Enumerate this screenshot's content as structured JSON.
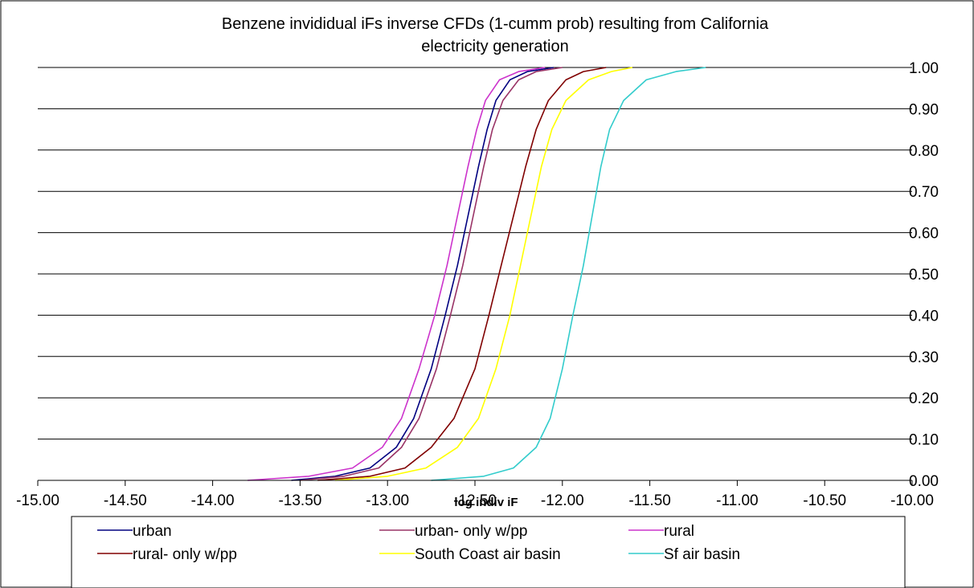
{
  "chart_data": {
    "type": "line",
    "title": "Benzene invididual iFs inverse CFDs (1-cumm prob) resulting from California electricity generation",
    "title_lines": [
      "Benzene invididual iFs inverse CFDs (1-cumm prob) resulting from California",
      "electricity generation"
    ],
    "xlabel": "log indiv iF",
    "ylabel": "",
    "xlim": [
      -15.0,
      -10.0
    ],
    "ylim": [
      0.0,
      1.0
    ],
    "x_ticks": [
      "-15.00",
      "-14.50",
      "-14.00",
      "-13.50",
      "-13.00",
      "-12.50",
      "-12.00",
      "-11.50",
      "-11.00",
      "-10.50",
      "-10.00"
    ],
    "y_ticks": [
      "0.00",
      "0.10",
      "0.20",
      "0.30",
      "0.40",
      "0.50",
      "0.60",
      "0.70",
      "0.80",
      "0.90",
      "1.00"
    ],
    "grid": "horizontal",
    "legend_position": "bottom",
    "series": [
      {
        "name": "urban",
        "color": "#000080",
        "points": [
          [
            -13.55,
            0.0
          ],
          [
            -13.3,
            0.01
          ],
          [
            -13.1,
            0.03
          ],
          [
            -12.95,
            0.08
          ],
          [
            -12.85,
            0.15
          ],
          [
            -12.75,
            0.27
          ],
          [
            -12.67,
            0.4
          ],
          [
            -12.6,
            0.52
          ],
          [
            -12.54,
            0.64
          ],
          [
            -12.48,
            0.76
          ],
          [
            -12.43,
            0.85
          ],
          [
            -12.38,
            0.92
          ],
          [
            -12.3,
            0.97
          ],
          [
            -12.2,
            0.99
          ],
          [
            -12.05,
            1.0
          ]
        ]
      },
      {
        "name": "urban- only w/pp",
        "color": "#993366",
        "points": [
          [
            -13.5,
            0.0
          ],
          [
            -13.25,
            0.01
          ],
          [
            -13.05,
            0.03
          ],
          [
            -12.92,
            0.08
          ],
          [
            -12.82,
            0.15
          ],
          [
            -12.72,
            0.27
          ],
          [
            -12.64,
            0.4
          ],
          [
            -12.57,
            0.52
          ],
          [
            -12.51,
            0.64
          ],
          [
            -12.45,
            0.76
          ],
          [
            -12.4,
            0.85
          ],
          [
            -12.34,
            0.92
          ],
          [
            -12.25,
            0.97
          ],
          [
            -12.15,
            0.99
          ],
          [
            -12.0,
            1.0
          ]
        ]
      },
      {
        "name": "rural",
        "color": "#cc33cc",
        "points": [
          [
            -13.8,
            0.0
          ],
          [
            -13.45,
            0.01
          ],
          [
            -13.2,
            0.03
          ],
          [
            -13.03,
            0.08
          ],
          [
            -12.92,
            0.15
          ],
          [
            -12.82,
            0.27
          ],
          [
            -12.73,
            0.4
          ],
          [
            -12.66,
            0.52
          ],
          [
            -12.6,
            0.64
          ],
          [
            -12.54,
            0.76
          ],
          [
            -12.49,
            0.85
          ],
          [
            -12.44,
            0.92
          ],
          [
            -12.36,
            0.97
          ],
          [
            -12.25,
            0.99
          ],
          [
            -12.1,
            1.0
          ]
        ]
      },
      {
        "name": "rural- only w/pp",
        "color": "#800000",
        "points": [
          [
            -13.4,
            0.0
          ],
          [
            -13.1,
            0.01
          ],
          [
            -12.9,
            0.03
          ],
          [
            -12.75,
            0.08
          ],
          [
            -12.62,
            0.15
          ],
          [
            -12.5,
            0.27
          ],
          [
            -12.42,
            0.4
          ],
          [
            -12.35,
            0.52
          ],
          [
            -12.28,
            0.64
          ],
          [
            -12.21,
            0.76
          ],
          [
            -12.15,
            0.85
          ],
          [
            -12.08,
            0.92
          ],
          [
            -11.98,
            0.97
          ],
          [
            -11.88,
            0.99
          ],
          [
            -11.75,
            1.0
          ]
        ]
      },
      {
        "name": "South Coast air basin",
        "color": "#ffff00",
        "points": [
          [
            -13.3,
            0.0
          ],
          [
            -13.0,
            0.01
          ],
          [
            -12.78,
            0.03
          ],
          [
            -12.6,
            0.08
          ],
          [
            -12.48,
            0.15
          ],
          [
            -12.38,
            0.27
          ],
          [
            -12.3,
            0.4
          ],
          [
            -12.24,
            0.52
          ],
          [
            -12.18,
            0.64
          ],
          [
            -12.12,
            0.76
          ],
          [
            -12.06,
            0.85
          ],
          [
            -11.98,
            0.92
          ],
          [
            -11.85,
            0.97
          ],
          [
            -11.72,
            0.99
          ],
          [
            -11.6,
            1.0
          ]
        ]
      },
      {
        "name": "Sf air basin",
        "color": "#33cccc",
        "points": [
          [
            -12.75,
            0.0
          ],
          [
            -12.45,
            0.01
          ],
          [
            -12.28,
            0.03
          ],
          [
            -12.15,
            0.08
          ],
          [
            -12.07,
            0.15
          ],
          [
            -12.0,
            0.27
          ],
          [
            -11.94,
            0.4
          ],
          [
            -11.88,
            0.52
          ],
          [
            -11.83,
            0.64
          ],
          [
            -11.78,
            0.76
          ],
          [
            -11.73,
            0.85
          ],
          [
            -11.65,
            0.92
          ],
          [
            -11.52,
            0.97
          ],
          [
            -11.35,
            0.99
          ],
          [
            -11.18,
            1.0
          ]
        ]
      }
    ]
  }
}
